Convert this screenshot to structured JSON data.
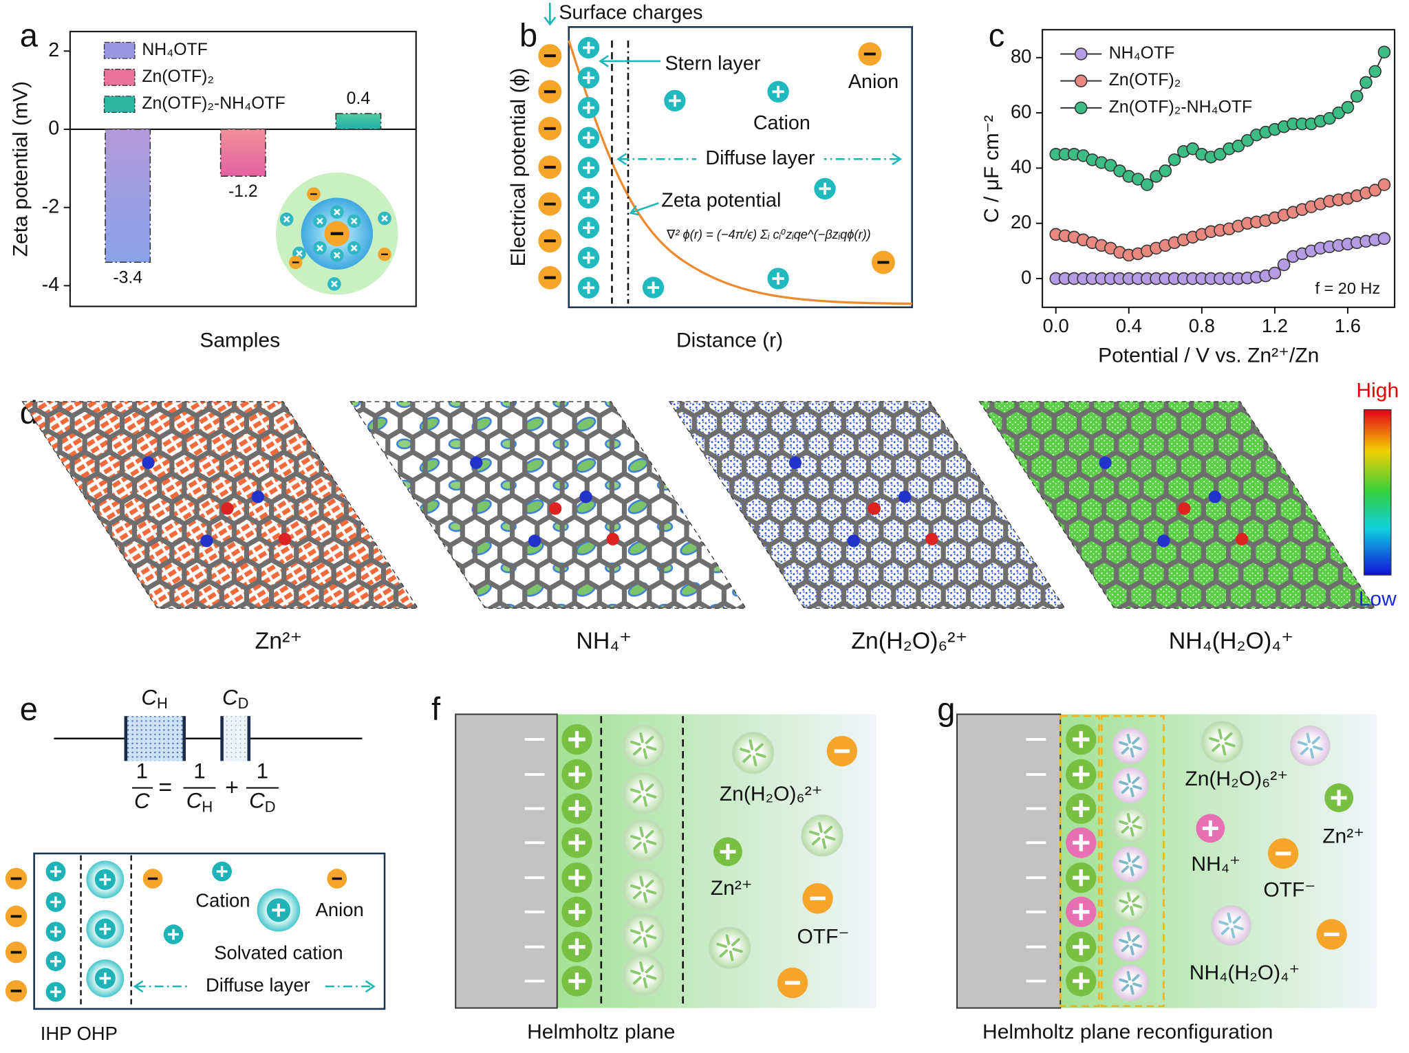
{
  "panel_letters": [
    "a",
    "b",
    "c",
    "d",
    "e",
    "f",
    "g"
  ],
  "chart_data": [
    {
      "type": "bar",
      "ylabel": "Zeta potential (mV)",
      "xlabel": "Samples",
      "ylim": [
        -4.53,
        2.5
      ],
      "yticks": [
        -4,
        -2,
        0,
        2
      ],
      "series": [
        {
          "name": "NH₄OTF",
          "color": "#9b94e0",
          "values": [
            -3.4
          ]
        },
        {
          "name": "Zn(OTF)₂",
          "color": "#e9739a",
          "values": [
            -1.2
          ]
        },
        {
          "name": "Zn(OTF)₂-NH₄OTF",
          "color": "#2bb7a3",
          "values": [
            0.4
          ]
        }
      ]
    },
    {
      "type": "line",
      "ylabel": "C / μF cm⁻²",
      "xlabel": "Potential / V vs. Zn²⁺/Zn",
      "annotation": "f = 20 Hz",
      "xlim": [
        -0.074,
        1.857
      ],
      "ylim": [
        -10.4,
        90.1
      ],
      "xticks": [
        {
          "value": 0,
          "label": "0.0"
        },
        0.4,
        0.8,
        1.2,
        1.6
      ],
      "yticks": [
        0,
        20,
        40,
        60,
        80
      ],
      "x": [
        0,
        0.05,
        0.1,
        0.15,
        0.2,
        0.25,
        0.3,
        0.35,
        0.4,
        0.45,
        0.5,
        0.55,
        0.6,
        0.65,
        0.7,
        0.75,
        0.8,
        0.85,
        0.9,
        0.95,
        1.0,
        1.05,
        1.1,
        1.15,
        1.2,
        1.25,
        1.3,
        1.35,
        1.4,
        1.45,
        1.5,
        1.55,
        1.6,
        1.65,
        1.7,
        1.75,
        1.8
      ],
      "series": [
        {
          "name": "NH₄OTF",
          "color": "#b49be3",
          "values": [
            0,
            0,
            0,
            0,
            0,
            0,
            0,
            0,
            0,
            0,
            0,
            0,
            0,
            0,
            0,
            0,
            0,
            0,
            0,
            0,
            0,
            0.2,
            0.5,
            1,
            2,
            5,
            8,
            9,
            10,
            11,
            11.5,
            12,
            12.5,
            13,
            13.5,
            14,
            14.5
          ]
        },
        {
          "name": "Zn(OTF)₂",
          "color": "#e8887f",
          "values": [
            16,
            15.5,
            15,
            14,
            13,
            12,
            11,
            9.5,
            8.5,
            9,
            10,
            11,
            12,
            13,
            14,
            15,
            16,
            17,
            17.5,
            18,
            19,
            20,
            20.5,
            21,
            22,
            23,
            24,
            25,
            26,
            27,
            28,
            28.5,
            29,
            30,
            31,
            32,
            34
          ]
        },
        {
          "name": "Zn(OTF)₂-NH₄OTF",
          "color": "#3dbd86",
          "values": [
            45,
            45,
            45,
            44.5,
            43,
            42,
            41,
            39,
            37,
            36,
            34,
            37,
            39,
            43,
            46,
            47,
            45,
            44,
            45,
            47,
            48,
            50,
            52,
            53,
            54,
            55,
            56,
            56,
            56,
            57,
            58,
            60,
            62,
            66,
            71,
            75,
            82
          ]
        }
      ]
    }
  ],
  "panel_b": {
    "xlabel": "Distance (r)",
    "ylabel": "Electrical potential (ϕ)",
    "surface": "Surface charges",
    "stern": "Stern layer",
    "anion": "Anion",
    "cation": "Cation",
    "diffuse": "Diffuse layer",
    "zeta": "Zeta potential",
    "equation": "∇² ϕ(r) = (−4π/ϵ) Σᵢ cᵢ⁰zᵢqe^(−βzᵢqϕ(r))"
  },
  "panel_d": {
    "labels": [
      "Zn²⁺",
      "NH₄⁺",
      "Zn(H₂O)₆²⁺",
      "NH₄(H₂O)₄⁺"
    ],
    "colorbar": {
      "high": "High",
      "low": "Low"
    }
  },
  "panel_e": {
    "capacitors": [
      {
        "symbol": "C",
        "subscript": "H"
      },
      {
        "symbol": "C",
        "subscript": "D"
      }
    ],
    "formula": {
      "lhs": {
        "numerator": "1",
        "denominator": "C"
      },
      "equals": "=",
      "plus": "+",
      "terms": [
        {
          "numerator": "1",
          "symbol": "C",
          "subscript": "H"
        },
        {
          "numerator": "1",
          "symbol": "C",
          "subscript": "D"
        }
      ]
    },
    "cation": "Cation",
    "anion": "Anion",
    "solvated": "Solvated cation",
    "diffuse": "Diffuse layer",
    "planes": "IHP OHP"
  },
  "panel_f": {
    "hydrated": "Zn(H₂O)₆²⁺",
    "zn": "Zn²⁺",
    "otf": "OTF⁻",
    "caption": "Helmholtz plane"
  },
  "panel_g": {
    "hydrated_zn": "Zn(H₂O)₆²⁺",
    "zn": "Zn²⁺",
    "nh4": "NH₄⁺",
    "otf": "OTF⁻",
    "hydrated_nh4": "NH₄(H₂O)₄⁺",
    "caption": "Helmholtz plane reconfiguration"
  }
}
